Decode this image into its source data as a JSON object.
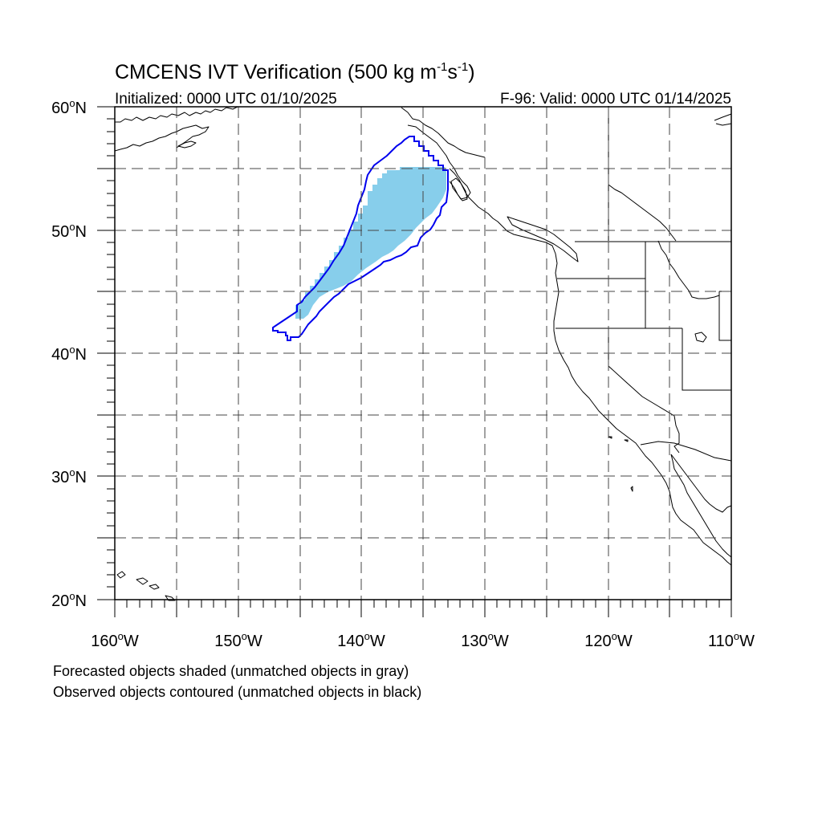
{
  "header": {
    "title_main": "CMCENS IVT Verification (500 kg m",
    "title_sup1": "-1",
    "title_s": "s",
    "title_sup2": "-1",
    "title_close": ")",
    "initialized": "Initialized: 0000 UTC 01/10/2025",
    "valid": "F-96: Valid: 0000 UTC 01/14/2025"
  },
  "axes": {
    "lat_labels": [
      {
        "deg": "60",
        "suffix": "N"
      },
      {
        "deg": "50",
        "suffix": "N"
      },
      {
        "deg": "40",
        "suffix": "N"
      },
      {
        "deg": "30",
        "suffix": "N"
      },
      {
        "deg": "20",
        "suffix": "N"
      }
    ],
    "lon_labels": [
      {
        "deg": "160",
        "suffix": "W"
      },
      {
        "deg": "150",
        "suffix": "W"
      },
      {
        "deg": "140",
        "suffix": "W"
      },
      {
        "deg": "130",
        "suffix": "W"
      },
      {
        "deg": "120",
        "suffix": "W"
      },
      {
        "deg": "110",
        "suffix": "W"
      }
    ],
    "lat_range": [
      20,
      60
    ],
    "lon_range": [
      -160,
      -110
    ],
    "grid": "dashed every 5 degrees"
  },
  "legend": {
    "line1": "Forecasted objects shaded (unmatched objects in gray)",
    "line2": "Observed objects contoured (unmatched objects in black)"
  },
  "colors": {
    "forecast_fill": "#87ceeb",
    "observed_contour": "#0000ee",
    "coast": "#000000",
    "grid": "#444444"
  }
}
